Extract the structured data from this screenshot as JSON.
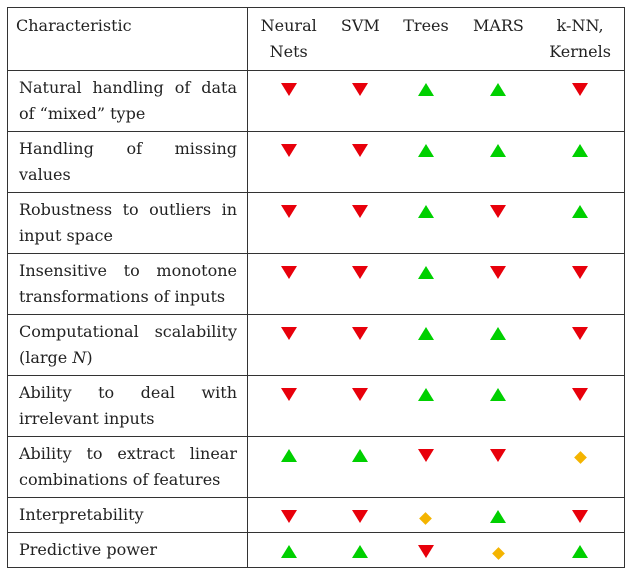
{
  "table": {
    "header": {
      "characteristic": "Characteristic",
      "columns": [
        {
          "line1": "Neural",
          "line2": "Nets"
        },
        {
          "line1": "SVM",
          "line2": ""
        },
        {
          "line1": "Trees",
          "line2": ""
        },
        {
          "line1": "MARS",
          "line2": ""
        },
        {
          "line1": "k-NN,",
          "line2": "Kernels"
        }
      ]
    },
    "rows": [
      {
        "label": "Natural handling of data of “mixed” type",
        "ratings": [
          "down",
          "down",
          "up",
          "up",
          "down"
        ]
      },
      {
        "label": "Handling of missing values",
        "ratings": [
          "down",
          "down",
          "up",
          "up",
          "up"
        ]
      },
      {
        "label": "Robustness to outliers in input space",
        "ratings": [
          "down",
          "down",
          "up",
          "down",
          "up"
        ]
      },
      {
        "label": "Insensitive to monotone transformations of inputs",
        "ratings": [
          "down",
          "down",
          "up",
          "down",
          "down"
        ]
      },
      {
        "label": "Computational scalability (large N)",
        "ratings": [
          "down",
          "down",
          "up",
          "up",
          "down"
        ]
      },
      {
        "label": "Ability to deal with irrelevant inputs",
        "ratings": [
          "down",
          "down",
          "up",
          "up",
          "down"
        ]
      },
      {
        "label": "Ability to extract linear combinations of features",
        "ratings": [
          "up",
          "up",
          "down",
          "down",
          "diamond"
        ]
      },
      {
        "label": "Interpretability",
        "ratings": [
          "down",
          "down",
          "diamond",
          "up",
          "down"
        ]
      },
      {
        "label": "Predictive power",
        "ratings": [
          "up",
          "up",
          "down",
          "diamond",
          "up"
        ]
      }
    ]
  },
  "legend_colors": {
    "down": "#e8000b",
    "up": "#00d000",
    "diamond": "#f4b400"
  },
  "icon_names": {
    "down": "red-down-triangle-icon",
    "up": "green-up-triangle-icon",
    "diamond": "yellow-diamond-icon"
  }
}
